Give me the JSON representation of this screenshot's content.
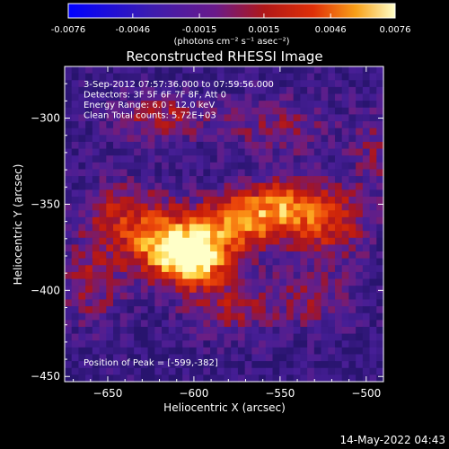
{
  "chart_data": {
    "type": "heatmap",
    "title": "Reconstructed RHESSI Image",
    "colorbar": {
      "ticks": [
        "-0.0076",
        "-0.0046",
        "-0.0015",
        "0.0015",
        "0.0046",
        "0.0076"
      ],
      "unit_label": "(photons cm⁻² s⁻¹ asec⁻²)",
      "range": [
        -0.0076,
        0.0076
      ]
    },
    "xlabel": "Heliocentric X (arcsec)",
    "ylabel": "Heliocentric Y (arcsec)",
    "xlim": [
      -675,
      -490
    ],
    "ylim": [
      -453,
      -270
    ],
    "xticks": [
      {
        "value": -650,
        "label": "−650"
      },
      {
        "value": -600,
        "label": "−600"
      },
      {
        "value": -550,
        "label": "−550"
      },
      {
        "value": -500,
        "label": "−500"
      }
    ],
    "yticks": [
      {
        "value": -300,
        "label": "−300"
      },
      {
        "value": -350,
        "label": "−350"
      },
      {
        "value": -400,
        "label": "−400"
      },
      {
        "value": -450,
        "label": "−450"
      }
    ],
    "annotations": [
      "3-Sep-2012 07:57:36.000 to 07:59:56.000",
      "Detectors: 3F 5F 6F 7F 8F, Att 0",
      "Energy Range: 6.0 - 12.0 keV",
      "Clean     Total counts: 5.72E+03"
    ],
    "peak_label": "Position of Peak = [-599,-382]",
    "peak": [
      -599,
      -382
    ],
    "hotspots": [
      {
        "x": -599,
        "y": -382,
        "amp": 1.0,
        "sx": 14,
        "sy": 11
      },
      {
        "x": -618,
        "y": -375,
        "amp": 0.75,
        "sx": 16,
        "sy": 12
      },
      {
        "x": -575,
        "y": -362,
        "amp": 0.7,
        "sx": 22,
        "sy": 12
      },
      {
        "x": -545,
        "y": -350,
        "amp": 0.65,
        "sx": 22,
        "sy": 11
      },
      {
        "x": -640,
        "y": -355,
        "amp": 0.5,
        "sx": 18,
        "sy": 14
      },
      {
        "x": -520,
        "y": -365,
        "amp": 0.45,
        "sx": 16,
        "sy": 14
      },
      {
        "x": -660,
        "y": -395,
        "amp": 0.4,
        "sx": 14,
        "sy": 18
      },
      {
        "x": -620,
        "y": -300,
        "amp": 0.45,
        "sx": 20,
        "sy": 10
      },
      {
        "x": -550,
        "y": -305,
        "amp": 0.35,
        "sx": 22,
        "sy": 12
      },
      {
        "x": -580,
        "y": -410,
        "amp": 0.4,
        "sx": 20,
        "sy": 12
      },
      {
        "x": -530,
        "y": -405,
        "amp": 0.3,
        "sx": 18,
        "sy": 14
      },
      {
        "x": -495,
        "y": -320,
        "amp": 0.3,
        "sx": 10,
        "sy": 16
      }
    ]
  },
  "footer": {
    "date": "14-May-2022 04:43"
  }
}
